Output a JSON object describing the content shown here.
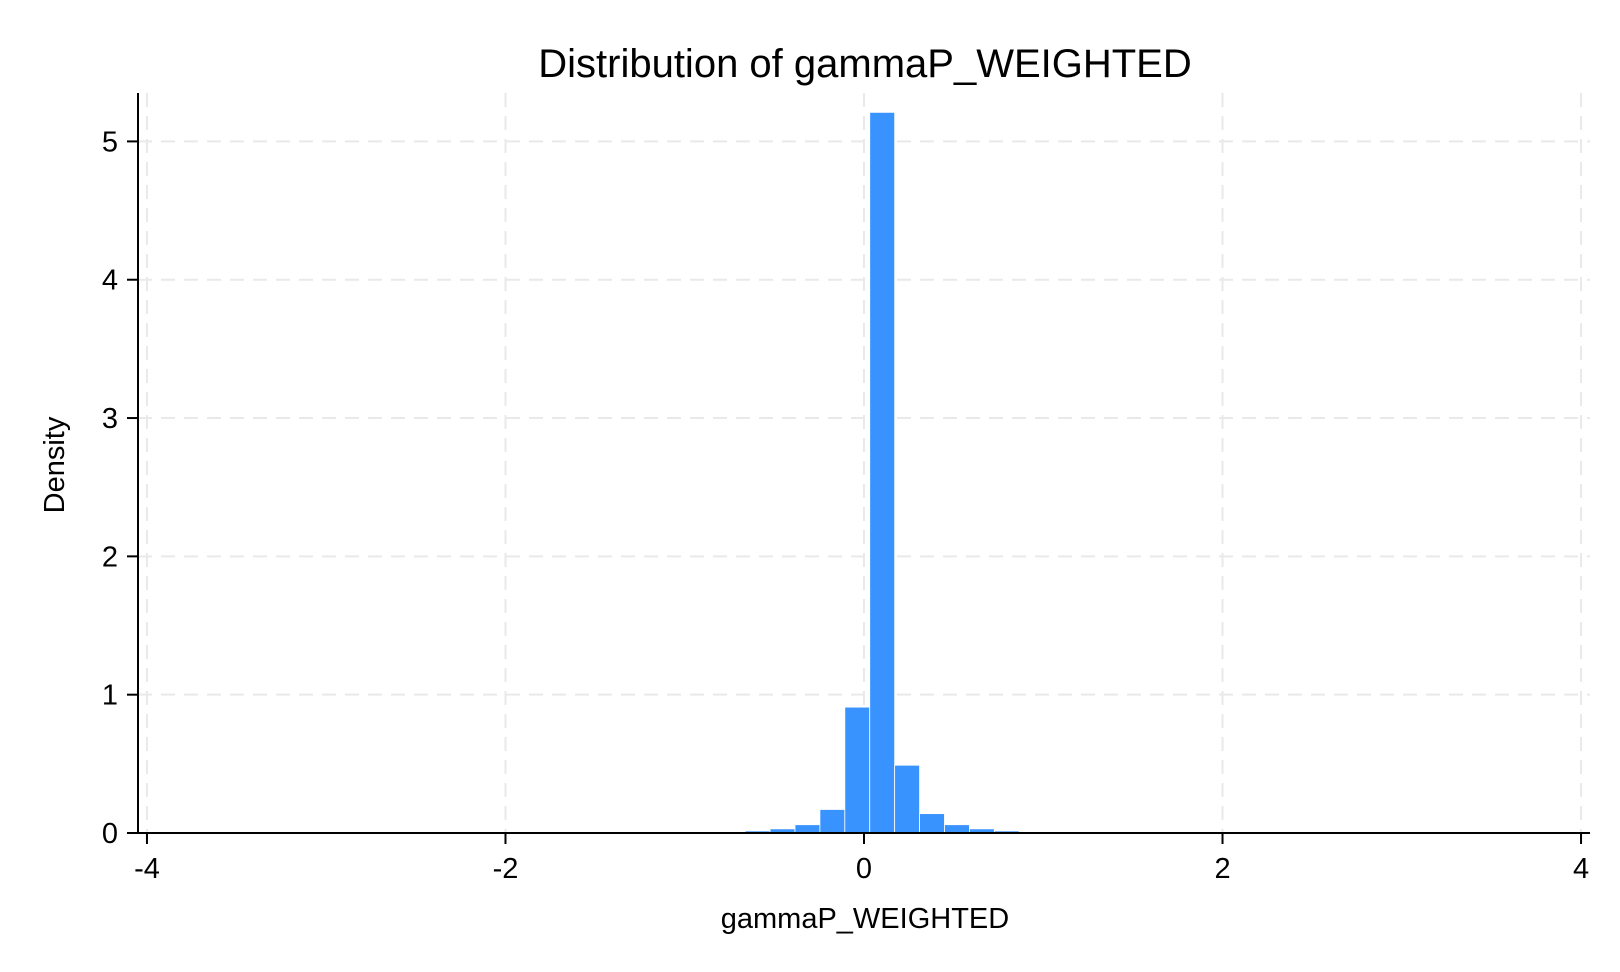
{
  "chart_data": {
    "type": "bar",
    "title": "Distribution of gammaP_WEIGHTED",
    "xlabel": "gammaP_WEIGHTED",
    "ylabel": "Density",
    "xlim": [
      -4.05,
      4.05
    ],
    "ylim": [
      0,
      5.35
    ],
    "xticks": [
      -4,
      -2,
      0,
      2,
      4
    ],
    "yticks": [
      0,
      1,
      2,
      3,
      4,
      5
    ],
    "grid": true,
    "bar_color": "#3993ff",
    "bin_width": 0.139,
    "bins": [
      {
        "x0": -4.0,
        "value": 0.002
      },
      {
        "x0": -2.47,
        "value": 0.003
      },
      {
        "x0": -2.192,
        "value": 0.004
      },
      {
        "x0": -1.914,
        "value": 0.005
      },
      {
        "x0": -1.636,
        "value": 0.005
      },
      {
        "x0": -1.358,
        "value": 0.006
      },
      {
        "x0": -1.08,
        "value": 0.007
      },
      {
        "x0": -0.941,
        "value": 0.008
      },
      {
        "x0": -0.802,
        "value": 0.01
      },
      {
        "x0": -0.663,
        "value": 0.015
      },
      {
        "x0": -0.524,
        "value": 0.03
      },
      {
        "x0": -0.385,
        "value": 0.06
      },
      {
        "x0": -0.246,
        "value": 0.17
      },
      {
        "x0": -0.107,
        "value": 0.91
      },
      {
        "x0": 0.032,
        "value": 5.21
      },
      {
        "x0": 0.171,
        "value": 0.49
      },
      {
        "x0": 0.31,
        "value": 0.14
      },
      {
        "x0": 0.449,
        "value": 0.06
      },
      {
        "x0": 0.588,
        "value": 0.03
      },
      {
        "x0": 0.727,
        "value": 0.015
      },
      {
        "x0": 0.866,
        "value": 0.008
      },
      {
        "x0": 1.005,
        "value": 0.006
      },
      {
        "x0": 1.283,
        "value": 0.005
      },
      {
        "x0": 1.561,
        "value": 0.004
      },
      {
        "x0": 1.839,
        "value": 0.003
      },
      {
        "x0": 2.117,
        "value": 0.003
      },
      {
        "x0": 2.395,
        "value": 0.002
      },
      {
        "x0": 2.95,
        "value": 0.002
      },
      {
        "x0": 3.39,
        "value": 0.002
      },
      {
        "x0": 3.86,
        "value": 0.002
      }
    ]
  }
}
